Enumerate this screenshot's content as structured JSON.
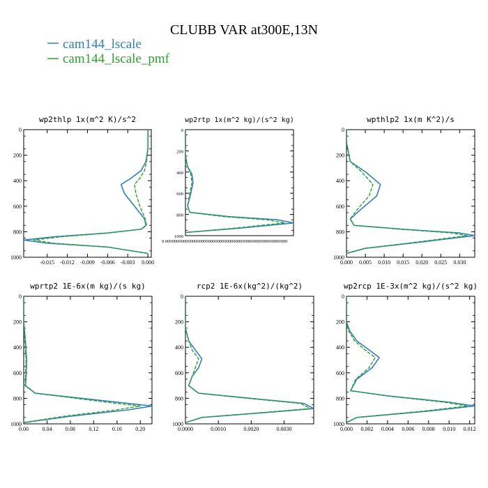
{
  "figure": {
    "title": "CLUBB VAR at300E,13N",
    "legend": [
      {
        "label": "cam144_lscale",
        "color": "#2f7fbf",
        "dash": "solid"
      },
      {
        "label": "cam144_lscale_pmf",
        "color": "#2ca02c",
        "dash": "dashed"
      }
    ],
    "legend_placement": "top-left"
  },
  "chart_data": [
    {
      "type": "line",
      "title": "wp2thlp  1x(m^2 K)/s^2",
      "xlim": [
        -0.0185,
        0.0005
      ],
      "ylim": [
        1000,
        0
      ],
      "xticks": [
        "-0.015",
        "-0.012",
        "-0.009",
        "-0.006",
        "-0.003",
        "0.000"
      ],
      "xtick_values": [
        -0.015,
        -0.012,
        -0.009,
        -0.006,
        -0.003,
        0.0
      ],
      "yticks": [
        "0",
        "200",
        "400",
        "600",
        "800",
        "1000"
      ],
      "ytick_values": [
        0,
        200,
        400,
        600,
        800,
        1000
      ],
      "series": [
        {
          "name": "cam144_lscale",
          "color": "#2f7fbf",
          "x": [
            0.0,
            0.0,
            -0.0003,
            -0.001,
            -0.0025,
            -0.004,
            -0.0035,
            -0.002,
            -0.0005,
            -0.0003,
            -0.001,
            -0.006,
            -0.014,
            -0.0185,
            -0.015,
            -0.006,
            0.0
          ],
          "y": [
            0,
            150,
            250,
            320,
            380,
            430,
            500,
            600,
            700,
            750,
            780,
            810,
            840,
            865,
            890,
            920,
            970
          ]
        },
        {
          "name": "cam144_lscale_pmf",
          "color": "#2ca02c",
          "x": [
            0.0,
            0.0,
            -0.0002,
            -0.0005,
            -0.0012,
            -0.002,
            -0.0018,
            -0.0012,
            -0.0004,
            -0.0002,
            -0.001,
            -0.006,
            -0.013,
            -0.017,
            -0.014,
            -0.006,
            0.0
          ],
          "y": [
            0,
            150,
            250,
            320,
            380,
            430,
            500,
            600,
            700,
            750,
            780,
            810,
            840,
            865,
            890,
            920,
            970
          ]
        }
      ]
    },
    {
      "type": "line",
      "title": "wp2rtp  1x(m^2 kg)/(s^2 kg)",
      "xlim": [
        0,
        1
      ],
      "ylim": [
        1000,
        0
      ],
      "xticks": [
        "0.000000000000000000000000000000000000000000000000000000"
      ],
      "xtick_values": [
        0
      ],
      "yticks": [
        "0",
        "200",
        "400",
        "600",
        "800",
        "1000"
      ],
      "ytick_values": [
        0,
        200,
        400,
        600,
        800,
        1000
      ],
      "series": [
        {
          "name": "cam144_lscale",
          "color": "#2f7fbf",
          "x": [
            0.0,
            0.0,
            0.02,
            0.06,
            0.07,
            0.05,
            0.02,
            0.04,
            0.4,
            0.85,
            1.0,
            0.5,
            0.0
          ],
          "y": [
            0,
            250,
            350,
            420,
            500,
            600,
            720,
            780,
            820,
            850,
            880,
            930,
            970
          ]
        },
        {
          "name": "cam144_lscale_pmf",
          "color": "#2ca02c",
          "x": [
            0.0,
            0.0,
            0.02,
            0.05,
            0.06,
            0.04,
            0.02,
            0.04,
            0.35,
            0.75,
            0.92,
            0.45,
            0.0
          ],
          "y": [
            0,
            250,
            350,
            420,
            500,
            600,
            720,
            780,
            820,
            850,
            880,
            930,
            970
          ]
        }
      ]
    },
    {
      "type": "line",
      "title": "wpthlp2  1x(m K^2)/s",
      "xlim": [
        0,
        0.034
      ],
      "ylim": [
        1000,
        0
      ],
      "xticks": [
        "0.000",
        "0.005",
        "0.010",
        "0.015",
        "0.020",
        "0.025",
        "0.030"
      ],
      "xtick_values": [
        0.0,
        0.005,
        0.01,
        0.015,
        0.02,
        0.025,
        0.03
      ],
      "yticks": [
        "0",
        "200",
        "400",
        "600",
        "800",
        "1000"
      ],
      "ytick_values": [
        0,
        200,
        400,
        600,
        800,
        1000
      ],
      "series": [
        {
          "name": "cam144_lscale",
          "color": "#2f7fbf",
          "x": [
            0.0,
            0.0,
            0.001,
            0.005,
            0.009,
            0.008,
            0.004,
            0.001,
            0.002,
            0.015,
            0.03,
            0.034,
            0.02,
            0.005,
            0.0
          ],
          "y": [
            0,
            100,
            250,
            330,
            430,
            520,
            620,
            700,
            750,
            780,
            810,
            830,
            880,
            930,
            970
          ]
        },
        {
          "name": "cam144_lscale_pmf",
          "color": "#2ca02c",
          "x": [
            0.0,
            0.0,
            0.001,
            0.004,
            0.007,
            0.006,
            0.003,
            0.001,
            0.002,
            0.014,
            0.028,
            0.032,
            0.019,
            0.005,
            0.0
          ],
          "y": [
            0,
            100,
            250,
            330,
            430,
            520,
            620,
            700,
            750,
            780,
            810,
            830,
            880,
            930,
            970
          ]
        }
      ]
    },
    {
      "type": "line",
      "title": "wprtp2  1E-6x(m kg)/(s kg)",
      "xlim": [
        0,
        0.22
      ],
      "ylim": [
        1000,
        0
      ],
      "xticks": [
        "0.00",
        "0.04",
        "0.08",
        "0.12",
        "0.16",
        "0.20"
      ],
      "xtick_values": [
        0.0,
        0.04,
        0.08,
        0.12,
        0.16,
        0.2
      ],
      "yticks": [
        "0",
        "200",
        "400",
        "600",
        "800",
        "1000"
      ],
      "ytick_values": [
        0,
        200,
        400,
        600,
        800,
        1000
      ],
      "series": [
        {
          "name": "cam144_lscale",
          "color": "#2f7fbf",
          "x": [
            0.0,
            0.0,
            0.003,
            0.005,
            0.004,
            0.003,
            0.02,
            0.1,
            0.18,
            0.22,
            0.18,
            0.08,
            0.0
          ],
          "y": [
            0,
            200,
            350,
            500,
            650,
            700,
            760,
            800,
            840,
            860,
            890,
            940,
            990
          ]
        },
        {
          "name": "cam144_lscale_pmf",
          "color": "#2ca02c",
          "x": [
            0.0,
            0.0,
            0.002,
            0.004,
            0.003,
            0.002,
            0.02,
            0.09,
            0.16,
            0.2,
            0.16,
            0.07,
            0.0
          ],
          "y": [
            0,
            200,
            350,
            500,
            650,
            700,
            760,
            800,
            840,
            860,
            890,
            940,
            990
          ]
        }
      ]
    },
    {
      "type": "line",
      "title": "rcp2  1E-6x(kg^2)/(kg^2)",
      "xlim": [
        0,
        0.0039
      ],
      "ylim": [
        1000,
        0
      ],
      "xticks": [
        "0.0000",
        "0.0010",
        "0.0020",
        "0.0030"
      ],
      "xtick_values": [
        0.0,
        0.001,
        0.002,
        0.003
      ],
      "yticks": [
        "0",
        "200",
        "400",
        "600",
        "800",
        "1000"
      ],
      "ytick_values": [
        0,
        200,
        400,
        600,
        800,
        1000
      ],
      "series": [
        {
          "name": "cam144_lscale",
          "color": "#2f7fbf",
          "x": [
            0.0,
            0.0,
            0.0001,
            0.0003,
            0.0005,
            0.0004,
            0.0002,
            0.0001,
            0.0004,
            0.002,
            0.0036,
            0.0039,
            0.0025,
            0.0005,
            0.0
          ],
          "y": [
            0,
            250,
            350,
            420,
            490,
            560,
            630,
            700,
            760,
            800,
            840,
            880,
            910,
            950,
            990
          ]
        },
        {
          "name": "cam144_lscale_pmf",
          "color": "#2ca02c",
          "x": [
            0.0,
            0.0,
            0.0001,
            0.0002,
            0.0004,
            0.0003,
            0.0002,
            0.0001,
            0.0004,
            0.0019,
            0.0035,
            0.0038,
            0.0024,
            0.0005,
            0.0
          ],
          "y": [
            0,
            250,
            350,
            420,
            490,
            560,
            630,
            700,
            760,
            800,
            840,
            880,
            910,
            950,
            990
          ]
        }
      ]
    },
    {
      "type": "line",
      "title": "wp2rcp  1E-3x(m^2 kg)/(s^2 kg)",
      "xlim": [
        0,
        0.0125
      ],
      "ylim": [
        1000,
        0
      ],
      "xticks": [
        "0.000",
        "0.002",
        "0.004",
        "0.006",
        "0.008",
        "0.010",
        "0.012"
      ],
      "xtick_values": [
        0.0,
        0.002,
        0.004,
        0.006,
        0.008,
        0.01,
        0.012
      ],
      "yticks": [
        "0",
        "200",
        "400",
        "600",
        "800",
        "1000"
      ],
      "ytick_values": [
        0,
        200,
        400,
        600,
        800,
        1000
      ],
      "series": [
        {
          "name": "cam144_lscale",
          "color": "#2f7fbf",
          "x": [
            0.0,
            0.0,
            0.0003,
            0.001,
            0.0022,
            0.0032,
            0.0025,
            0.001,
            0.0004,
            0.004,
            0.01,
            0.0125,
            0.008,
            0.001,
            0.0
          ],
          "y": [
            0,
            200,
            270,
            350,
            420,
            480,
            560,
            650,
            740,
            780,
            830,
            860,
            900,
            950,
            990
          ]
        },
        {
          "name": "cam144_lscale_pmf",
          "color": "#2ca02c",
          "x": [
            0.0,
            0.0,
            0.0002,
            0.0008,
            0.0018,
            0.0028,
            0.0022,
            0.0009,
            0.0004,
            0.0038,
            0.0095,
            0.0118,
            0.0075,
            0.001,
            0.0
          ],
          "y": [
            0,
            200,
            270,
            350,
            420,
            480,
            560,
            650,
            740,
            780,
            830,
            860,
            900,
            950,
            990
          ]
        }
      ]
    }
  ]
}
